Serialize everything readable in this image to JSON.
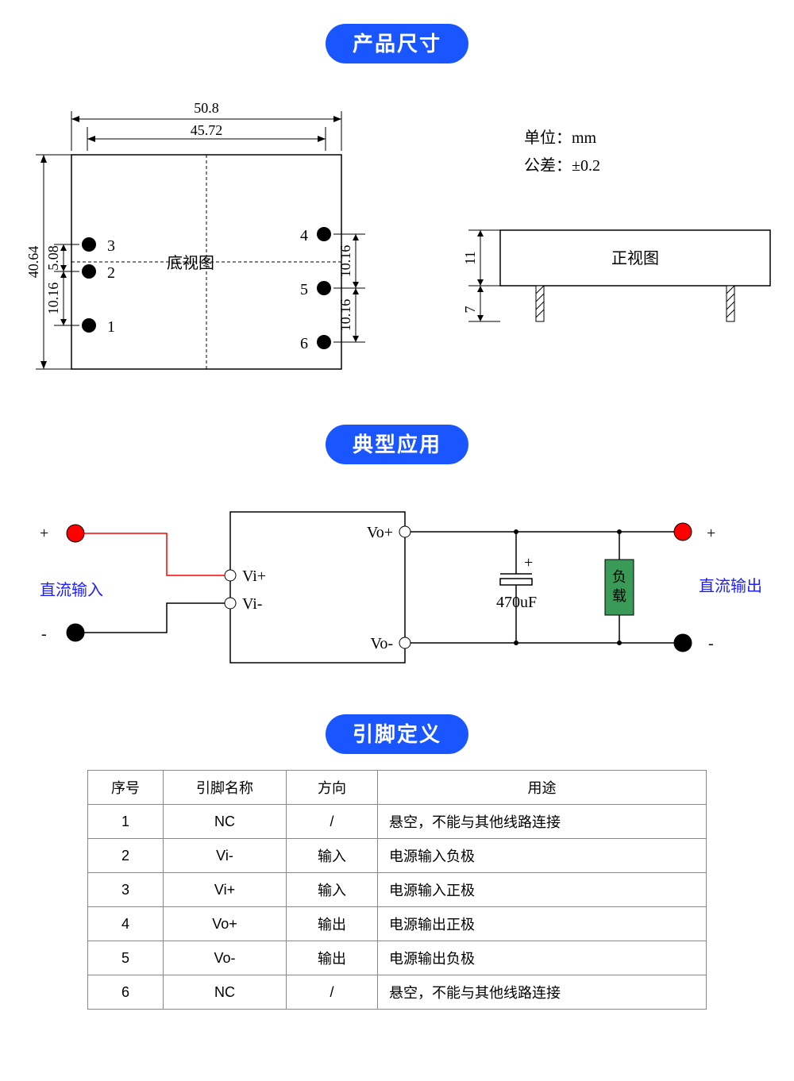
{
  "sections": {
    "dimensions": {
      "title": "产品尺寸"
    },
    "application": {
      "title": "典型应用"
    },
    "pins": {
      "title": "引脚定义"
    }
  },
  "units": {
    "label": "单位：",
    "value": "mm"
  },
  "tolerance": {
    "label": "公差：",
    "value": "±0.2"
  },
  "bottom_view": {
    "label": "底视图",
    "width_outer": "50.8",
    "width_inner": "45.72",
    "height": "40.64",
    "left_pins": [
      {
        "num": "3",
        "dy_label": "5.08"
      },
      {
        "num": "2",
        "dy_label": "10.16"
      },
      {
        "num": "1"
      }
    ],
    "right_pins": [
      {
        "num": "4",
        "dy_label": "10.16"
      },
      {
        "num": "5",
        "dy_label": "10.16"
      },
      {
        "num": "6"
      }
    ]
  },
  "front_view": {
    "label": "正视图",
    "body_height": "11",
    "pin_length": "7"
  },
  "circuit": {
    "input_label": "直流输入",
    "output_label": "直流输出",
    "vi_plus": "Vi+",
    "vi_minus": "Vi-",
    "vo_plus": "Vo+",
    "vo_minus": "Vo-",
    "cap_value": "470uF",
    "load_label": "负载",
    "plus": "+",
    "minus": "-"
  },
  "pin_table": {
    "headers": [
      "序号",
      "引脚名称",
      "方向",
      "用途"
    ],
    "rows": [
      [
        "1",
        "NC",
        "/",
        "悬空，不能与其他线路连接"
      ],
      [
        "2",
        "Vi-",
        "输入",
        "电源输入负极"
      ],
      [
        "3",
        "Vi+",
        "输入",
        "电源输入正极"
      ],
      [
        "4",
        "Vo+",
        "输出",
        "电源输出正极"
      ],
      [
        "5",
        "Vo-",
        "输出",
        "电源输出负极"
      ],
      [
        "6",
        "NC",
        "/",
        "悬空，不能与其他线路连接"
      ]
    ]
  },
  "colors": {
    "badge_bg": "#1a56ff",
    "red": "#ff0000",
    "blue_text": "#2020ff",
    "load_fill": "#3a9a57",
    "border": "#888888"
  }
}
